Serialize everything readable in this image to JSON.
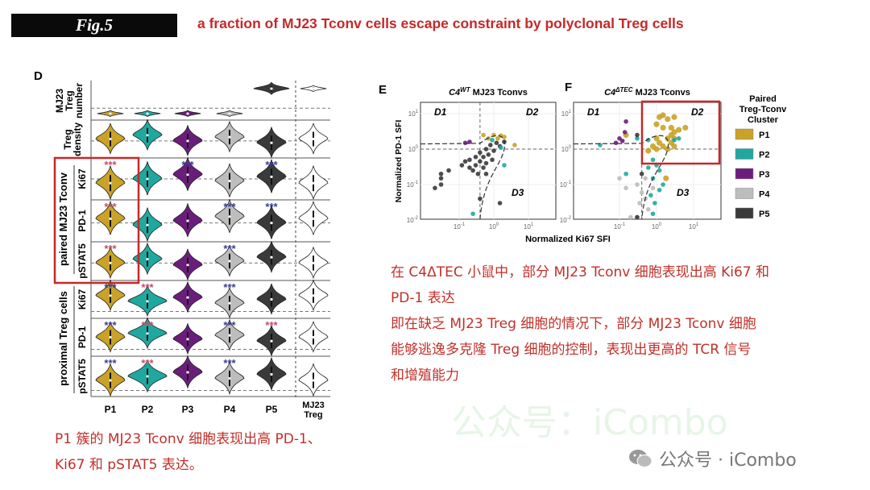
{
  "header": {
    "fig_label": "Fig.5",
    "title": "a fraction of MJ23 Tconv cells escape constraint by polyclonal Treg cells"
  },
  "colors": {
    "P1": "#c9a227",
    "P2": "#1fa89f",
    "P3": "#6b1d7c",
    "P4": "#bdbdbd",
    "P5": "#3a3a3a",
    "MJ23 Treg": "#ffffff",
    "accent_red": "#c62828",
    "star_red": "#c0506a",
    "star_blue": "#3b3f8f"
  },
  "panel_d": {
    "label": "D",
    "columns": [
      "P1",
      "P2",
      "P3",
      "P4",
      "P5",
      "MJ23 Treg"
    ],
    "row_labels": [
      "MJ23 Treg number",
      "Treg density",
      "Ki67",
      "PD-1",
      "pSTAT5",
      "Ki67",
      "PD-1",
      "pSTAT5"
    ],
    "row_label_lines": [
      [
        "MJ23",
        "Treg",
        "number"
      ],
      [
        "Treg",
        "density"
      ]
    ],
    "group_labels": [
      "paired MJ23 Tconv",
      "proximal Treg cells"
    ],
    "significance_mark": "***",
    "significance": [
      [
        null,
        null,
        null,
        null,
        null,
        null
      ],
      [
        null,
        null,
        null,
        null,
        null,
        null
      ],
      [
        "red",
        null,
        "blue",
        null,
        "blue",
        null
      ],
      [
        "red",
        null,
        null,
        "blue",
        "blue",
        null
      ],
      [
        "red",
        null,
        null,
        "blue",
        null,
        null
      ],
      [
        "blue",
        "red",
        null,
        "blue",
        null,
        null
      ],
      [
        "blue",
        "red",
        null,
        "blue",
        "red",
        null
      ],
      [
        "blue",
        "red",
        null,
        "blue",
        null,
        null
      ]
    ],
    "highlight": "paired MJ23 Tconv P1"
  },
  "chart_data": [
    {
      "type": "scatter",
      "panel": "E",
      "title_main": "C4",
      "title_sup": "WT",
      "title_rest": " MJ23 Tconvs",
      "xlabel": "Normalized Ki67 SFI",
      "ylabel": "Normalized PD-1 SFI",
      "xscale": "log",
      "yscale": "log",
      "xlim": [
        0.008,
        40
      ],
      "ylim": [
        0.01,
        25
      ],
      "xticks": [
        "10^-1",
        "10^0",
        "10^1"
      ],
      "yticks": [
        "10^-2",
        "10^-1",
        "10^0",
        "10^1"
      ],
      "quadrants": [
        "D1",
        "D2",
        "D3"
      ],
      "thresholds": {
        "x": 0.4,
        "y": 1
      },
      "points": [
        [
          0.02,
          0.08,
          "P5"
        ],
        [
          0.03,
          0.1,
          "P5"
        ],
        [
          0.03,
          0.15,
          "P5"
        ],
        [
          0.03,
          0.2,
          "P5"
        ],
        [
          0.05,
          0.25,
          "P5"
        ],
        [
          0.12,
          0.35,
          "P5"
        ],
        [
          0.15,
          0.45,
          "P5"
        ],
        [
          0.2,
          0.3,
          "P5"
        ],
        [
          0.2,
          0.5,
          "P5"
        ],
        [
          0.25,
          0.25,
          "P5"
        ],
        [
          0.3,
          0.35,
          "P5"
        ],
        [
          0.3,
          0.6,
          "P5"
        ],
        [
          0.35,
          0.2,
          "P5"
        ],
        [
          0.4,
          0.45,
          "P5"
        ],
        [
          0.4,
          0.8,
          "P5"
        ],
        [
          0.5,
          0.3,
          "P5"
        ],
        [
          0.5,
          0.6,
          "P5"
        ],
        [
          0.6,
          1,
          "P5"
        ],
        [
          0.6,
          0.4,
          "P5"
        ],
        [
          0.7,
          0.7,
          "P5"
        ],
        [
          0.8,
          1.3,
          "P5"
        ],
        [
          0.9,
          0.5,
          "P5"
        ],
        [
          1,
          0.9,
          "P5"
        ],
        [
          1.2,
          1.5,
          "P5"
        ],
        [
          1.5,
          0.03,
          "P5"
        ],
        [
          0.6,
          0.2,
          "P5"
        ],
        [
          0.4,
          0.04,
          "P5"
        ],
        [
          1.5,
          1.2,
          "P5"
        ],
        [
          2,
          1.6,
          "P5"
        ],
        [
          0.7,
          2,
          "P1"
        ],
        [
          1,
          2.5,
          "P1"
        ],
        [
          1.3,
          2,
          "P1"
        ],
        [
          1.6,
          2.4,
          "P1"
        ],
        [
          2,
          2.2,
          "P1"
        ],
        [
          4,
          1.3,
          "P1"
        ],
        [
          0.5,
          2.5,
          "P1"
        ],
        [
          2,
          0.35,
          "P2"
        ],
        [
          1.6,
          1.1,
          "P2"
        ],
        [
          0.25,
          0.015,
          "P2"
        ],
        [
          0.9,
          1.8,
          "P2"
        ],
        [
          0.15,
          1.5,
          "P3"
        ],
        [
          0.2,
          1.6,
          "P3"
        ]
      ]
    },
    {
      "type": "scatter",
      "panel": "F",
      "title_main": "C4",
      "title_sup": "ΔTEC",
      "title_rest": " MJ23 Tconvs",
      "xscale": "log",
      "yscale": "log",
      "xlim": [
        0.008,
        40
      ],
      "ylim": [
        0.01,
        25
      ],
      "xticks": [
        "10^-1",
        "10^0",
        "10^1"
      ],
      "yticks": [
        "10^-2",
        "10^-1",
        "10^0",
        "10^1"
      ],
      "quadrants": [
        "D1",
        "D2",
        "D3"
      ],
      "thresholds": {
        "x": 0.4,
        "y": 1
      },
      "points": [
        [
          1.2,
          8,
          "P1"
        ],
        [
          1.5,
          9,
          "P1"
        ],
        [
          2,
          7,
          "P1"
        ],
        [
          3,
          8,
          "P1"
        ],
        [
          1,
          5,
          "P1"
        ],
        [
          1.5,
          4,
          "P1"
        ],
        [
          2.5,
          4,
          "P1"
        ],
        [
          3,
          3,
          "P1"
        ],
        [
          4,
          3.5,
          "P1"
        ],
        [
          6,
          4,
          "P1"
        ],
        [
          1,
          2,
          "P1"
        ],
        [
          1.2,
          1.5,
          "P1"
        ],
        [
          2,
          2,
          "P1"
        ],
        [
          2.5,
          2.5,
          "P1"
        ],
        [
          3,
          2,
          "P1"
        ],
        [
          0.8,
          1.2,
          "P1"
        ],
        [
          1,
          1,
          "P1"
        ],
        [
          1.5,
          1.2,
          "P1"
        ],
        [
          2,
          1,
          "P1"
        ],
        [
          2.5,
          1.5,
          "P1"
        ],
        [
          3,
          1.2,
          "P1"
        ],
        [
          0.6,
          0.9,
          "P1"
        ],
        [
          0.15,
          2.5,
          "P1"
        ],
        [
          1.8,
          0.15,
          "P1"
        ],
        [
          0.6,
          1.8,
          "P2"
        ],
        [
          0.3,
          2,
          "P2"
        ],
        [
          3,
          1.8,
          "P2"
        ],
        [
          4,
          2,
          "P2"
        ],
        [
          0.8,
          0.5,
          "P2"
        ],
        [
          1,
          0.35,
          "P2"
        ],
        [
          0.6,
          0.3,
          "P2"
        ],
        [
          1.2,
          0.25,
          "P2"
        ],
        [
          0.8,
          0.15,
          "P2"
        ],
        [
          1.5,
          0.1,
          "P2"
        ],
        [
          1.2,
          0.07,
          "P2"
        ],
        [
          0.7,
          0.05,
          "P2"
        ],
        [
          0.9,
          0.03,
          "P2"
        ],
        [
          0.8,
          0.015,
          "P2"
        ],
        [
          0.15,
          0.2,
          "P2"
        ],
        [
          0.03,
          1.3,
          "P2"
        ],
        [
          0.08,
          1.5,
          "P3"
        ],
        [
          0.1,
          2,
          "P3"
        ],
        [
          0.12,
          1.7,
          "P3"
        ],
        [
          0.14,
          3,
          "P3"
        ],
        [
          0.15,
          6,
          "P3"
        ],
        [
          0.1,
          0.15,
          "P4"
        ],
        [
          0.15,
          0.08,
          "P4"
        ],
        [
          0.3,
          0.1,
          "P4"
        ],
        [
          0.4,
          0.06,
          "P4"
        ],
        [
          0.5,
          0.04,
          "P4"
        ],
        [
          0.6,
          0.02,
          "P4"
        ],
        [
          0.3,
          0.012,
          "P4"
        ],
        [
          0.2,
          0.012,
          "P4"
        ],
        [
          0.5,
          0.15,
          "P4"
        ],
        [
          0.8,
          0.08,
          "P4"
        ],
        [
          0.35,
          0.03,
          "P4"
        ],
        [
          0.4,
          0.2,
          "P5"
        ],
        [
          0.3,
          2.5,
          "P5"
        ],
        [
          0.3,
          0.012,
          "P5"
        ]
      ]
    }
  ],
  "legend": {
    "title_lines": [
      "Paired",
      "Treg-Tconv",
      "Cluster"
    ],
    "items": [
      "P1",
      "P2",
      "P3",
      "P4",
      "P5"
    ]
  },
  "text": {
    "right_lines": [
      "在 C4ΔTEC 小鼠中，部分 MJ23 Tconv 细胞表现出高 Ki67 和",
      "PD-1 表达",
      "即在缺乏 MJ23 Treg 细胞的情况下，部分 MJ23 Tconv 细胞",
      "能够逃逸多克隆 Treg 细胞的控制，表现出更高的 TCR 信号",
      "和增殖能力"
    ],
    "left_lines": [
      "P1 簇的 MJ23 Tconv 细胞表现出高 PD-1、",
      "Ki67 和 pSTAT5 表达。"
    ]
  },
  "watermark": {
    "corner": "公众号 · iCombo",
    "center": "公众号：iCombo"
  }
}
